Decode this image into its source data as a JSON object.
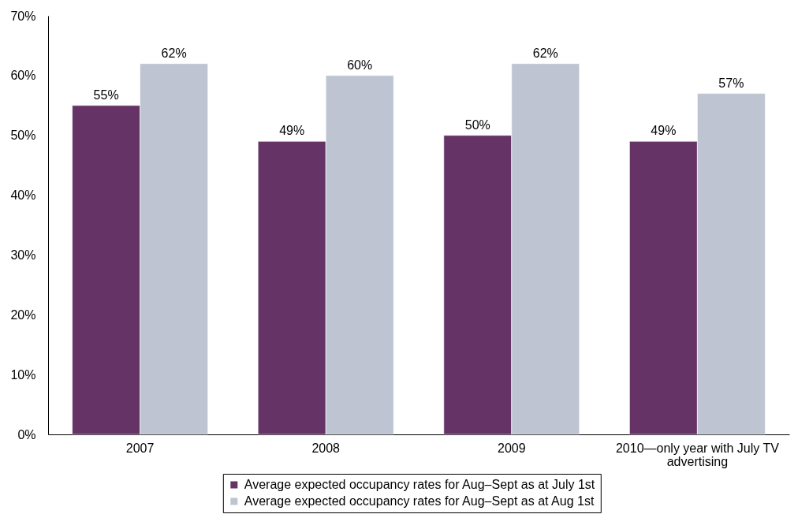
{
  "chart_data": {
    "type": "bar",
    "categories": [
      "2007",
      "2008",
      "2009",
      "2010—only year with July TV advertising"
    ],
    "series": [
      {
        "name": "Average expected occupancy rates for Aug–Sept as at July 1st",
        "color": "#663366",
        "values": [
          55,
          49,
          50,
          49
        ],
        "value_labels": [
          "55%",
          "49%",
          "50%",
          "49%"
        ]
      },
      {
        "name": "Average expected occupancy rates for Aug–Sept as at Aug 1st",
        "color": "#bec4d1",
        "values": [
          62,
          60,
          62,
          57
        ],
        "value_labels": [
          "62%",
          "60%",
          "62%",
          "57%"
        ]
      }
    ],
    "ylim": [
      0,
      70
    ],
    "yticks": [
      {
        "value": 0,
        "label": "0%"
      },
      {
        "value": 10,
        "label": "10%"
      },
      {
        "value": 20,
        "label": "20%"
      },
      {
        "value": 30,
        "label": "30%"
      },
      {
        "value": 40,
        "label": "40%"
      },
      {
        "value": 50,
        "label": "50%"
      },
      {
        "value": 60,
        "label": "60%"
      },
      {
        "value": 70,
        "label": "70%"
      }
    ],
    "legend": "bottom"
  }
}
